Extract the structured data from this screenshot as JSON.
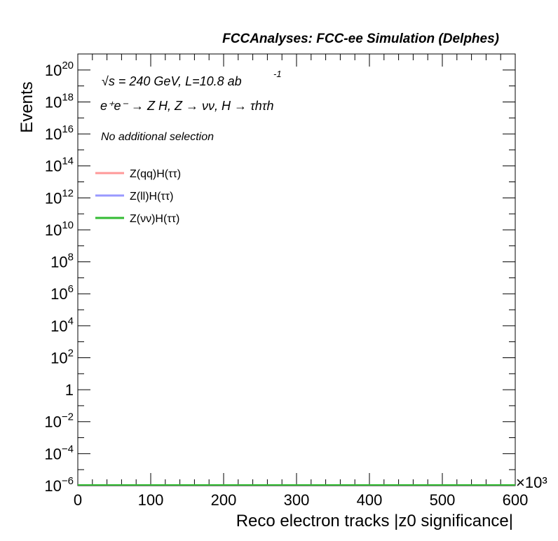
{
  "header": {
    "title": "FCCAnalyses: FCC-ee Simulation (Delphes)",
    "energy_line": "√s = 240 GeV, L=10.8 ab",
    "energy_sup": "-1",
    "process_line": "e⁺e⁻ → Z H, Z → νν, H → τhτh",
    "selection_line": "No additional selection"
  },
  "chart_data": {
    "type": "line",
    "xlabel": "Reco electron tracks |z0 significance|",
    "ylabel": "Events",
    "x_multiplier_label": "×10³",
    "xlim": [
      0,
      600
    ],
    "x_unit_multiplier": 1000,
    "ylim": [
      1e-06,
      1e+21
    ],
    "y_scale": "log",
    "x_ticks": [
      0,
      100,
      200,
      300,
      400,
      500,
      600
    ],
    "x_tick_labels": [
      "0",
      "100",
      "200",
      "300",
      "400",
      "500",
      "600"
    ],
    "y_ticks": [
      {
        "value": 1e-06,
        "base": "10",
        "exp": "−6"
      },
      {
        "value": 0.0001,
        "base": "10",
        "exp": "−4"
      },
      {
        "value": 0.01,
        "base": "10",
        "exp": "−2"
      },
      {
        "value": 1,
        "base": "1",
        "exp": ""
      },
      {
        "value": 100.0,
        "base": "10",
        "exp": "2"
      },
      {
        "value": 10000.0,
        "base": "10",
        "exp": "4"
      },
      {
        "value": 1000000.0,
        "base": "10",
        "exp": "6"
      },
      {
        "value": 100000000.0,
        "base": "10",
        "exp": "8"
      },
      {
        "value": 10000000000.0,
        "base": "10",
        "exp": "10"
      },
      {
        "value": 1000000000000.0,
        "base": "10",
        "exp": "12"
      },
      {
        "value": 100000000000000.0,
        "base": "10",
        "exp": "14"
      },
      {
        "value": 1e+16,
        "base": "10",
        "exp": "16"
      },
      {
        "value": 1e+18,
        "base": "10",
        "exp": "18"
      },
      {
        "value": 1e+20,
        "base": "10",
        "exp": "20"
      }
    ],
    "grid": false,
    "legend_placement": "top-left",
    "series": [
      {
        "name": "Z(qq)H(ττ)",
        "color": "#ff9999",
        "x": [
          0,
          600
        ],
        "y": [
          1e-06,
          1e-06
        ]
      },
      {
        "name": "Z(ll)H(ττ)",
        "color": "#9999ff",
        "x": [
          0,
          600
        ],
        "y": [
          1e-06,
          1e-06
        ]
      },
      {
        "name": "Z(νν)H(ττ)",
        "color": "#33bb33",
        "x": [
          0,
          600
        ],
        "y": [
          1e-06,
          1e-06
        ]
      }
    ]
  }
}
